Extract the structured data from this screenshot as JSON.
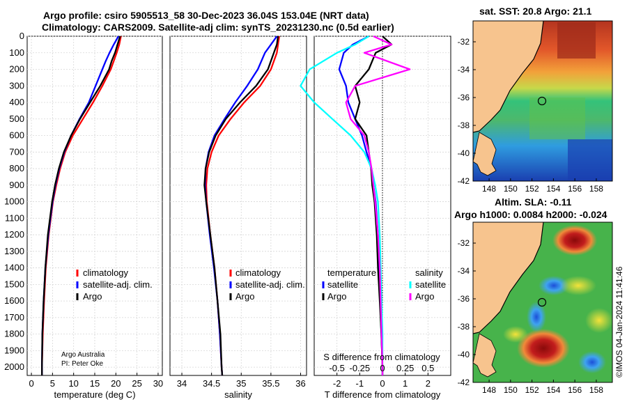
{
  "title": {
    "line1": "Argo profile: csiro 5905513_58 30-Dec-2023 36.04S 153.04E (NRT data)",
    "line2": "Climatology: CARS2009. Satellite-adj clim: synTS_20231230.nc (0.5d earlier)"
  },
  "colors": {
    "climatology": "#ff0000",
    "satellite": "#0000ff",
    "argo": "#000000",
    "sal_satellite": "#00ffff",
    "sal_argo": "#ff00ff"
  },
  "depth_axis": {
    "ylim": [
      0,
      2050
    ],
    "ticks": [
      0,
      100,
      200,
      300,
      400,
      500,
      600,
      700,
      800,
      900,
      1000,
      1100,
      1200,
      1300,
      1400,
      1500,
      1600,
      1700,
      1800,
      1900,
      2000
    ]
  },
  "legend_labels": {
    "climatology": "climatology",
    "satellite_clim": "satellite-adj. clim.",
    "argo": "Argo",
    "temperature": "temperature",
    "salinity": "salinity",
    "satellite": "satellite"
  },
  "credit": {
    "line1": "Argo Australia",
    "line2": "PI: Peter Oke"
  },
  "chart_data": [
    {
      "type": "line",
      "name": "temperature-profile",
      "xlabel": "temperature (deg C)",
      "ylabel": "",
      "xlim": [
        -1,
        31
      ],
      "xticks": [
        0,
        5,
        10,
        15,
        20,
        25,
        30
      ],
      "ylim": [
        0,
        2050
      ],
      "y_reversed": true,
      "depth": [
        0,
        50,
        100,
        150,
        200,
        300,
        400,
        500,
        600,
        700,
        800,
        900,
        1000,
        1200,
        1400,
        1600,
        1800,
        2000,
        2050
      ],
      "series": [
        {
          "name": "climatology",
          "values": [
            21.2,
            20.8,
            20.2,
            19.5,
            18.8,
            16.8,
            14.6,
            12.2,
            9.8,
            8.0,
            6.8,
            5.9,
            5.1,
            4.1,
            3.4,
            3.0,
            2.7,
            2.5,
            2.5
          ]
        },
        {
          "name": "satellite-adj. clim.",
          "values": [
            20.6,
            19.5,
            18.5,
            17.6,
            16.8,
            15.2,
            13.6,
            11.4,
            9.4,
            7.8,
            6.6,
            5.7,
            5.0,
            4.0,
            3.3,
            2.9,
            2.6,
            2.5,
            2.5
          ]
        },
        {
          "name": "Argo",
          "values": [
            21.0,
            20.4,
            19.8,
            19.0,
            18.4,
            16.3,
            13.9,
            11.5,
            9.4,
            7.7,
            6.5,
            5.6,
            4.9,
            3.9,
            3.3,
            2.9,
            2.6,
            2.5,
            2.5
          ]
        }
      ]
    },
    {
      "type": "line",
      "name": "salinity-profile",
      "xlabel": "salinity",
      "ylabel": "",
      "xlim": [
        33.8,
        36.1
      ],
      "xticks": [
        34,
        34.5,
        35,
        35.5,
        36
      ],
      "ylim": [
        0,
        2050
      ],
      "y_reversed": true,
      "depth": [
        0,
        50,
        100,
        200,
        300,
        400,
        500,
        600,
        700,
        800,
        900,
        1000,
        1200,
        1400,
        1600,
        1800,
        2000,
        2050
      ],
      "series": [
        {
          "name": "climatology",
          "values": [
            35.64,
            35.62,
            35.6,
            35.5,
            35.32,
            35.05,
            34.82,
            34.62,
            34.5,
            34.43,
            34.41,
            34.42,
            34.48,
            34.55,
            34.6,
            34.64,
            34.67,
            34.68
          ]
        },
        {
          "name": "satellite-adj. clim.",
          "values": [
            35.6,
            35.5,
            35.4,
            35.28,
            35.1,
            34.9,
            34.72,
            34.55,
            34.45,
            34.4,
            34.39,
            34.41,
            34.47,
            34.54,
            34.6,
            34.64,
            34.67,
            34.68
          ]
        },
        {
          "name": "Argo",
          "values": [
            35.62,
            35.6,
            35.55,
            35.45,
            35.25,
            34.98,
            34.74,
            34.57,
            34.46,
            34.4,
            34.38,
            34.41,
            34.48,
            34.55,
            34.6,
            34.65,
            34.67,
            34.68
          ]
        }
      ]
    },
    {
      "type": "line",
      "name": "difference-profile",
      "xlabel": "T difference from climatology",
      "top_xlabel": "S difference from climatology",
      "xlim": [
        -3.0,
        3.0
      ],
      "xticks": [
        -2,
        -1,
        0,
        1,
        2
      ],
      "top_ticks": [
        "-0.5",
        "-0.25",
        "0",
        "0.25",
        "0.5"
      ],
      "ylim": [
        0,
        2050
      ],
      "y_reversed": true,
      "depth": [
        0,
        50,
        100,
        200,
        300,
        400,
        500,
        600,
        700,
        800,
        900,
        1000,
        1200,
        1400,
        1600,
        1800,
        2000,
        2050
      ],
      "series": [
        {
          "name": "temperature satellite",
          "values": [
            -0.6,
            -1.3,
            -1.7,
            -1.9,
            -1.6,
            -1.5,
            -1.2,
            -0.9,
            -0.7,
            -0.5,
            -0.4,
            -0.3,
            -0.2,
            -0.15,
            -0.1,
            -0.05,
            0.0,
            0.0
          ]
        },
        {
          "name": "temperature Argo",
          "values": [
            0.0,
            0.4,
            -0.3,
            -0.6,
            -1.2,
            -1.0,
            -1.2,
            -0.7,
            -0.6,
            -0.5,
            -0.45,
            -0.35,
            -0.25,
            -0.2,
            -0.12,
            -0.05,
            0.0,
            0.0
          ]
        },
        {
          "name": "salinity satellite",
          "values": [
            -0.15,
            -0.3,
            -0.5,
            -0.8,
            -0.9,
            -0.75,
            -0.55,
            -0.35,
            -0.2,
            -0.12,
            -0.08,
            -0.05,
            -0.03,
            -0.02,
            -0.01,
            0.0,
            0.0,
            0.0
          ]
        },
        {
          "name": "salinity Argo",
          "values": [
            -0.1,
            0.1,
            -0.2,
            0.3,
            -0.3,
            -0.4,
            -0.35,
            -0.2,
            -0.15,
            -0.12,
            -0.1,
            -0.08,
            -0.05,
            -0.03,
            -0.02,
            -0.01,
            0.0,
            0.0
          ]
        }
      ]
    },
    {
      "type": "heatmap",
      "name": "sst-map",
      "title": "sat. SST: 20.8 Argo: 21.1",
      "xticks": [
        "148",
        "150",
        "152",
        "154",
        "156",
        "158"
      ],
      "yticks": [
        "-32",
        "-34",
        "-36",
        "-38",
        "-40",
        "-42"
      ],
      "xlim": [
        146.5,
        159.5
      ],
      "ylim": [
        -42,
        -30.5
      ],
      "marker": {
        "lon": 153.04,
        "lat": -36.04
      }
    },
    {
      "type": "heatmap",
      "name": "sla-map",
      "title_line1": "Altim. SLA: -0.11",
      "title_line2": "Argo h1000: 0.0084 h2000: -0.024",
      "xticks": [
        "148",
        "150",
        "152",
        "154",
        "156",
        "158"
      ],
      "yticks": [
        "-32",
        "-34",
        "-36",
        "-38",
        "-40",
        "-42"
      ],
      "xlim": [
        146.5,
        159.5
      ],
      "ylim": [
        -42,
        -30.5
      ],
      "marker": {
        "lon": 153.04,
        "lat": -36.04
      }
    }
  ],
  "stamp": "©IMOS 04-Jan-2024 11:41:46"
}
